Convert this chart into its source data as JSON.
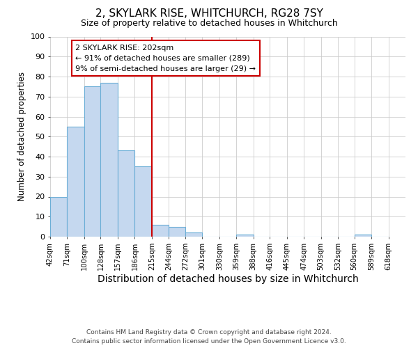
{
  "title1": "2, SKYLARK RISE, WHITCHURCH, RG28 7SY",
  "title2": "Size of property relative to detached houses in Whitchurch",
  "xlabel": "Distribution of detached houses by size in Whitchurch",
  "ylabel": "Number of detached properties",
  "annotation_title": "2 SKYLARK RISE: 202sqm",
  "annotation_line1": "← 91% of detached houses are smaller (289)",
  "annotation_line2": "9% of semi-detached houses are larger (29) →",
  "footnote1": "Contains HM Land Registry data © Crown copyright and database right 2024.",
  "footnote2": "Contains public sector information licensed under the Open Government Licence v3.0.",
  "bar_left_edges": [
    42,
    71,
    100,
    128,
    157,
    186,
    215,
    244,
    272,
    301,
    330,
    359,
    388,
    416,
    445,
    474,
    503,
    532,
    560,
    589
  ],
  "bar_widths": [
    29,
    29,
    28,
    29,
    29,
    29,
    29,
    28,
    29,
    29,
    29,
    29,
    28,
    29,
    29,
    29,
    29,
    28,
    29,
    29
  ],
  "bar_heights": [
    20,
    55,
    75,
    77,
    43,
    35,
    6,
    5,
    2,
    0,
    0,
    1,
    0,
    0,
    0,
    0,
    0,
    0,
    1,
    0
  ],
  "bar_color": "#c5d8ef",
  "bar_edge_color": "#6baed6",
  "grid_color": "#cccccc",
  "vline_x": 215,
  "vline_color": "#cc0000",
  "ylim": [
    0,
    100
  ],
  "xlim": [
    42,
    647
  ],
  "tick_labels": [
    "42sqm",
    "71sqm",
    "100sqm",
    "128sqm",
    "157sqm",
    "186sqm",
    "215sqm",
    "244sqm",
    "272sqm",
    "301sqm",
    "330sqm",
    "359sqm",
    "388sqm",
    "416sqm",
    "445sqm",
    "474sqm",
    "503sqm",
    "532sqm",
    "560sqm",
    "589sqm",
    "618sqm"
  ],
  "tick_positions": [
    42,
    71,
    100,
    128,
    157,
    186,
    215,
    244,
    272,
    301,
    330,
    359,
    388,
    416,
    445,
    474,
    503,
    532,
    560,
    589,
    618
  ],
  "annotation_box_color": "#ffffff",
  "annotation_box_edge": "#cc0000",
  "background_color": "#ffffff",
  "title1_fontsize": 11,
  "title2_fontsize": 9,
  "ylabel_fontsize": 8.5,
  "xlabel_fontsize": 10
}
